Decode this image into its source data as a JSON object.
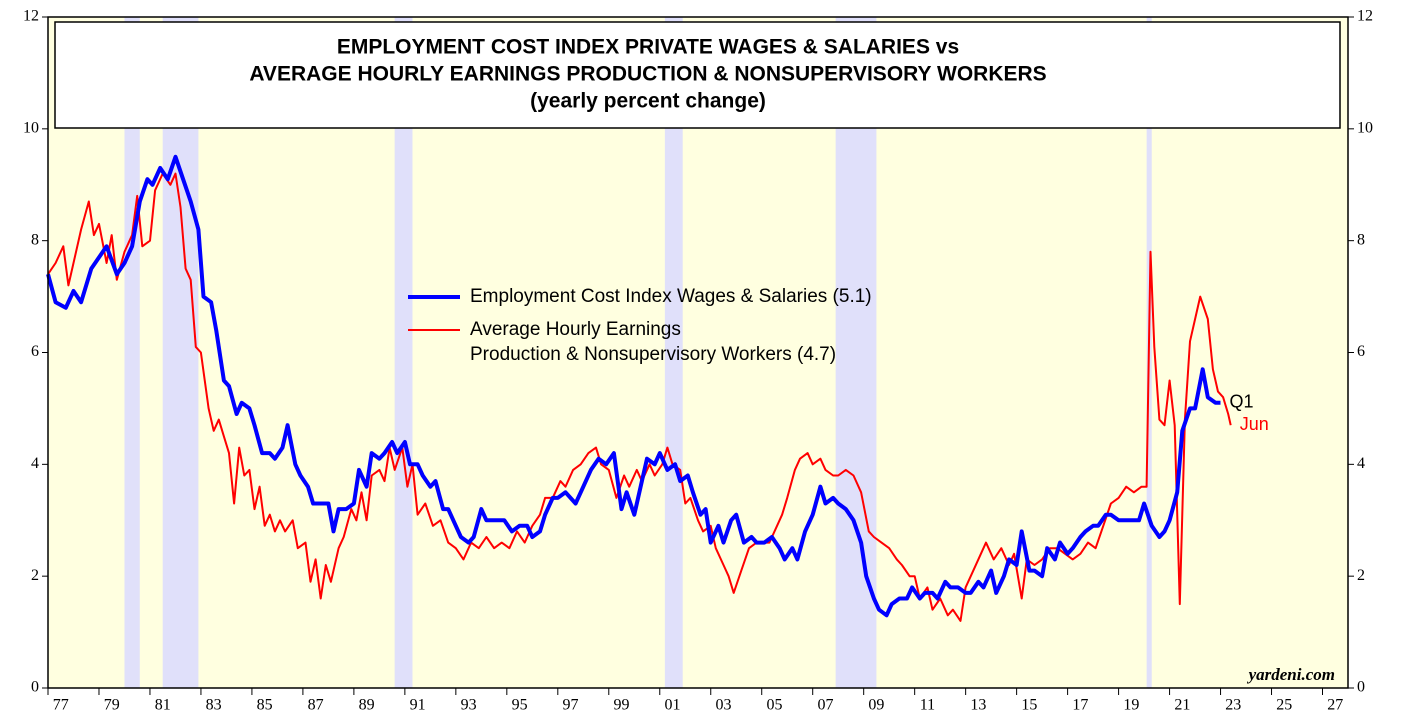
{
  "chart_data": {
    "type": "line",
    "title": [
      "EMPLOYMENT COST INDEX PRIVATE WAGES & SALARIES vs",
      "AVERAGE HOURLY EARNINGS PRODUCTION & NONSUPERVISORY WORKERS"
    ],
    "subtitle": "(yearly percent change)",
    "source": "yardeni.com",
    "xlim": [
      1977,
      2028
    ],
    "ylim": [
      0,
      12
    ],
    "yticks": [
      0,
      2,
      4,
      6,
      8,
      10,
      12
    ],
    "xticks": [
      {
        "value": 1977,
        "label": "77"
      },
      {
        "value": 1979,
        "label": "79"
      },
      {
        "value": 1981,
        "label": "81"
      },
      {
        "value": 1983,
        "label": "83"
      },
      {
        "value": 1985,
        "label": "85"
      },
      {
        "value": 1987,
        "label": "87"
      },
      {
        "value": 1989,
        "label": "89"
      },
      {
        "value": 1991,
        "label": "91"
      },
      {
        "value": 1993,
        "label": "93"
      },
      {
        "value": 1995,
        "label": "95"
      },
      {
        "value": 1997,
        "label": "97"
      },
      {
        "value": 1999,
        "label": "99"
      },
      {
        "value": 2001,
        "label": "01"
      },
      {
        "value": 2003,
        "label": "03"
      },
      {
        "value": 2005,
        "label": "05"
      },
      {
        "value": 2007,
        "label": "07"
      },
      {
        "value": 2009,
        "label": "09"
      },
      {
        "value": 2011,
        "label": "11"
      },
      {
        "value": 2013,
        "label": "13"
      },
      {
        "value": 2015,
        "label": "15"
      },
      {
        "value": 2017,
        "label": "17"
      },
      {
        "value": 2019,
        "label": "19"
      },
      {
        "value": 2021,
        "label": "21"
      },
      {
        "value": 2023,
        "label": "23"
      },
      {
        "value": 2025,
        "label": "25"
      },
      {
        "value": 2027,
        "label": "27"
      }
    ],
    "recessions": [
      [
        1980.0,
        1980.6
      ],
      [
        1981.5,
        1982.9
      ],
      [
        1990.6,
        1991.3
      ],
      [
        2001.2,
        2001.9
      ],
      [
        2007.9,
        2009.5
      ],
      [
        2020.1,
        2020.3
      ]
    ],
    "background_color": "#ffffe0",
    "recession_color": "#e0e0fa",
    "series": [
      {
        "name": "Employment Cost Index Wages & Salaries (5.1)",
        "color": "#0000ff",
        "end_label": "Q1",
        "x": [
          1977.0,
          1977.3,
          1977.7,
          1978.0,
          1978.3,
          1978.7,
          1979.0,
          1979.3,
          1979.7,
          1980.0,
          1980.3,
          1980.6,
          1980.9,
          1981.1,
          1981.4,
          1981.7,
          1982.0,
          1982.3,
          1982.6,
          1982.9,
          1983.1,
          1983.4,
          1983.6,
          1983.9,
          1984.1,
          1984.4,
          1984.6,
          1984.9,
          1985.1,
          1985.4,
          1985.7,
          1985.9,
          1986.2,
          1986.4,
          1986.7,
          1986.9,
          1987.2,
          1987.4,
          1987.7,
          1988.0,
          1988.2,
          1988.4,
          1988.7,
          1989.0,
          1989.2,
          1989.5,
          1989.7,
          1990.0,
          1990.2,
          1990.5,
          1990.7,
          1991.0,
          1991.2,
          1991.5,
          1991.7,
          1992.0,
          1992.2,
          1992.5,
          1992.7,
          1993.0,
          1993.2,
          1993.5,
          1993.7,
          1994.0,
          1994.2,
          1994.5,
          1994.9,
          1995.2,
          1995.5,
          1995.8,
          1996.0,
          1996.3,
          1996.5,
          1996.8,
          1997.0,
          1997.3,
          1997.7,
          1998.0,
          1998.3,
          1998.6,
          1998.9,
          1999.2,
          1999.5,
          1999.7,
          2000.0,
          2000.3,
          2000.5,
          2000.8,
          2001.0,
          2001.3,
          2001.6,
          2001.8,
          2002.1,
          2002.3,
          2002.6,
          2002.8,
          2003.0,
          2003.3,
          2003.5,
          2003.8,
          2004.0,
          2004.3,
          2004.6,
          2004.8,
          2005.1,
          2005.4,
          2005.7,
          2005.9,
          2006.2,
          2006.4,
          2006.7,
          2007.0,
          2007.3,
          2007.5,
          2007.8,
          2008.0,
          2008.3,
          2008.6,
          2008.9,
          2009.1,
          2009.4,
          2009.6,
          2009.9,
          2010.1,
          2010.4,
          2010.7,
          2010.9,
          2011.2,
          2011.4,
          2011.7,
          2011.9,
          2012.2,
          2012.4,
          2012.7,
          2013.0,
          2013.2,
          2013.5,
          2013.7,
          2014.0,
          2014.2,
          2014.5,
          2014.7,
          2015.0,
          2015.2,
          2015.5,
          2015.7,
          2016.0,
          2016.2,
          2016.5,
          2016.7,
          2017.0,
          2017.2,
          2017.5,
          2017.7,
          2018.0,
          2018.2,
          2018.5,
          2018.7,
          2019.0,
          2019.3,
          2019.5,
          2019.8,
          2020.0,
          2020.3,
          2020.6,
          2020.8,
          2021.0,
          2021.3,
          2021.5,
          2021.8,
          2022.0,
          2022.3,
          2022.5,
          2022.8,
          2023.0
        ],
        "values": [
          7.4,
          6.9,
          6.8,
          7.1,
          6.9,
          7.5,
          7.7,
          7.9,
          7.4,
          7.6,
          7.9,
          8.7,
          9.1,
          9.0,
          9.3,
          9.1,
          9.5,
          9.1,
          8.7,
          8.2,
          7.0,
          6.9,
          6.4,
          5.5,
          5.4,
          4.9,
          5.1,
          5.0,
          4.7,
          4.2,
          4.2,
          4.1,
          4.3,
          4.7,
          4.0,
          3.8,
          3.6,
          3.3,
          3.3,
          3.3,
          2.8,
          3.2,
          3.2,
          3.3,
          3.9,
          3.6,
          4.2,
          4.1,
          4.2,
          4.4,
          4.2,
          4.4,
          4.0,
          4.0,
          3.8,
          3.6,
          3.7,
          3.2,
          3.2,
          2.9,
          2.7,
          2.6,
          2.7,
          3.2,
          3.0,
          3.0,
          3.0,
          2.8,
          2.9,
          2.9,
          2.7,
          2.8,
          3.1,
          3.4,
          3.4,
          3.5,
          3.3,
          3.6,
          3.9,
          4.1,
          4.0,
          4.2,
          3.2,
          3.5,
          3.1,
          3.7,
          4.1,
          4.0,
          4.2,
          3.9,
          4.0,
          3.7,
          3.8,
          3.5,
          3.1,
          3.2,
          2.6,
          2.9,
          2.6,
          3.0,
          3.1,
          2.6,
          2.7,
          2.6,
          2.6,
          2.7,
          2.5,
          2.3,
          2.5,
          2.3,
          2.8,
          3.1,
          3.6,
          3.3,
          3.4,
          3.3,
          3.2,
          3.0,
          2.6,
          2.0,
          1.6,
          1.4,
          1.3,
          1.5,
          1.6,
          1.6,
          1.8,
          1.6,
          1.7,
          1.7,
          1.6,
          1.9,
          1.8,
          1.8,
          1.7,
          1.7,
          1.9,
          1.8,
          2.1,
          1.7,
          2.0,
          2.3,
          2.2,
          2.8,
          2.1,
          2.1,
          2.0,
          2.5,
          2.3,
          2.6,
          2.4,
          2.5,
          2.7,
          2.8,
          2.9,
          2.9,
          3.1,
          3.1,
          3.0,
          3.0,
          3.0,
          3.0,
          3.3,
          2.9,
          2.7,
          2.8,
          3.0,
          3.5,
          4.6,
          5.0,
          5.0,
          5.7,
          5.2,
          5.1,
          5.1
        ]
      },
      {
        "name": "Average Hourly Earnings\nProduction & Nonsupervisory Workers (4.7)",
        "color": "#ff0000",
        "end_label": "Jun",
        "x": [
          1977.0,
          1977.3,
          1977.6,
          1977.8,
          1978.0,
          1978.3,
          1978.6,
          1978.8,
          1979.0,
          1979.3,
          1979.5,
          1979.7,
          1980.0,
          1980.3,
          1980.5,
          1980.7,
          1981.0,
          1981.2,
          1981.5,
          1981.8,
          1982.0,
          1982.2,
          1982.4,
          1982.6,
          1982.8,
          1983.0,
          1983.3,
          1983.5,
          1983.7,
          1983.9,
          1984.1,
          1984.3,
          1984.5,
          1984.7,
          1984.9,
          1985.1,
          1985.3,
          1985.5,
          1985.7,
          1985.9,
          1986.1,
          1986.3,
          1986.6,
          1986.8,
          1987.1,
          1987.3,
          1987.5,
          1987.7,
          1987.9,
          1988.1,
          1988.4,
          1988.6,
          1988.9,
          1989.1,
          1989.3,
          1989.5,
          1989.7,
          1990.0,
          1990.2,
          1990.4,
          1990.6,
          1990.9,
          1991.1,
          1991.3,
          1991.5,
          1991.8,
          1992.1,
          1992.4,
          1992.7,
          1993.0,
          1993.3,
          1993.6,
          1993.9,
          1994.2,
          1994.5,
          1994.8,
          1995.1,
          1995.4,
          1995.7,
          1996.0,
          1996.3,
          1996.5,
          1996.8,
          1997.1,
          1997.3,
          1997.6,
          1997.9,
          1998.2,
          1998.5,
          1998.7,
          1999.0,
          1999.3,
          1999.6,
          1999.8,
          2000.1,
          2000.3,
          2000.6,
          2000.8,
          2001.1,
          2001.3,
          2001.5,
          2001.8,
          2002.0,
          2002.2,
          2002.5,
          2002.7,
          2003.0,
          2003.2,
          2003.5,
          2003.7,
          2003.9,
          2004.2,
          2004.5,
          2004.8,
          2005.0,
          2005.3,
          2005.5,
          2005.8,
          2006.0,
          2006.3,
          2006.5,
          2006.8,
          2007.0,
          2007.3,
          2007.5,
          2007.8,
          2008.0,
          2008.3,
          2008.6,
          2008.9,
          2009.2,
          2009.4,
          2009.7,
          2010.0,
          2010.3,
          2010.5,
          2010.8,
          2011.0,
          2011.2,
          2011.5,
          2011.7,
          2012.0,
          2012.3,
          2012.5,
          2012.8,
          2013.0,
          2013.3,
          2013.6,
          2013.8,
          2014.1,
          2014.4,
          2014.7,
          2014.9,
          2015.2,
          2015.4,
          2015.7,
          2016.0,
          2016.3,
          2016.6,
          2016.9,
          2017.2,
          2017.5,
          2017.8,
          2018.1,
          2018.4,
          2018.7,
          2019.0,
          2019.3,
          2019.6,
          2019.9,
          2020.1,
          2020.25,
          2020.4,
          2020.6,
          2020.8,
          2021.0,
          2021.2,
          2021.4,
          2021.6,
          2021.8,
          2022.0,
          2022.2,
          2022.5,
          2022.7,
          2022.9,
          2023.1,
          2023.3,
          2023.4
        ],
        "values": [
          7.4,
          7.6,
          7.9,
          7.2,
          7.6,
          8.2,
          8.7,
          8.1,
          8.3,
          7.6,
          8.1,
          7.3,
          7.8,
          8.1,
          8.8,
          7.9,
          8.0,
          8.9,
          9.2,
          9.0,
          9.2,
          8.6,
          7.5,
          7.3,
          6.1,
          6.0,
          5.0,
          4.6,
          4.8,
          4.5,
          4.2,
          3.3,
          4.3,
          3.8,
          3.9,
          3.2,
          3.6,
          2.9,
          3.1,
          2.8,
          3.0,
          2.8,
          3.0,
          2.5,
          2.6,
          1.9,
          2.3,
          1.6,
          2.2,
          1.9,
          2.5,
          2.7,
          3.2,
          3.0,
          3.5,
          3.0,
          3.8,
          3.9,
          3.7,
          4.3,
          3.9,
          4.3,
          3.6,
          4.0,
          3.1,
          3.3,
          2.9,
          3.0,
          2.6,
          2.5,
          2.3,
          2.6,
          2.5,
          2.7,
          2.5,
          2.6,
          2.5,
          2.8,
          2.6,
          2.9,
          3.1,
          3.4,
          3.4,
          3.7,
          3.6,
          3.9,
          4.0,
          4.2,
          4.3,
          4.0,
          3.9,
          3.4,
          3.8,
          3.6,
          3.9,
          3.7,
          4.0,
          3.8,
          4.0,
          4.3,
          4.0,
          3.9,
          3.3,
          3.4,
          3.0,
          2.8,
          2.9,
          2.5,
          2.2,
          2.0,
          1.7,
          2.1,
          2.5,
          2.6,
          2.6,
          2.6,
          2.8,
          3.1,
          3.4,
          3.9,
          4.1,
          4.2,
          4.0,
          4.1,
          3.9,
          3.8,
          3.8,
          3.9,
          3.8,
          3.5,
          2.8,
          2.7,
          2.6,
          2.5,
          2.3,
          2.2,
          2.0,
          2.0,
          1.6,
          1.8,
          1.4,
          1.6,
          1.3,
          1.4,
          1.2,
          1.8,
          2.1,
          2.4,
          2.6,
          2.3,
          2.5,
          2.2,
          2.4,
          1.6,
          2.3,
          2.2,
          2.3,
          2.5,
          2.5,
          2.4,
          2.3,
          2.4,
          2.6,
          2.5,
          2.9,
          3.3,
          3.4,
          3.6,
          3.5,
          3.6,
          3.6,
          7.8,
          6.1,
          4.8,
          4.7,
          5.5,
          4.7,
          1.5,
          4.8,
          6.2,
          6.6,
          7.0,
          6.6,
          5.7,
          5.3,
          5.2,
          4.9,
          4.7
        ]
      }
    ]
  }
}
